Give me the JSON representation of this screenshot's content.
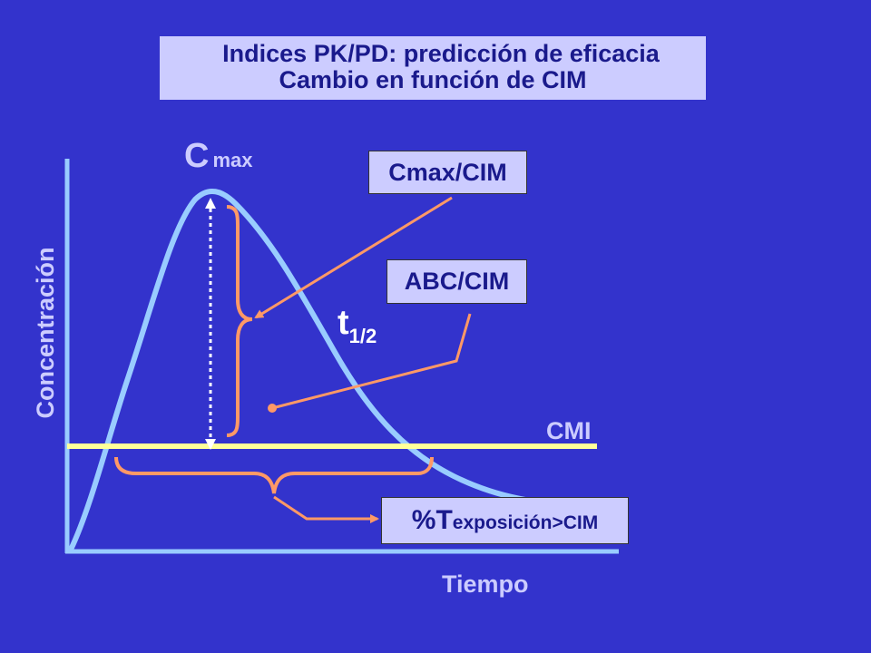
{
  "title": {
    "line1": "Indices PK/PD: predicción de eficacia",
    "line2": "Cambio en función de CIM"
  },
  "labels": {
    "cmax_main": "C",
    "cmax_sub": "max",
    "thalf_main": "t",
    "thalf_sub": "1/2",
    "cmi": "CMI",
    "x_axis": "Tiempo",
    "y_axis": "Concentración"
  },
  "boxes": {
    "cmax_cim": "Cmax/CIM",
    "abc_cim": "ABC/CIM",
    "texp_main": "%T",
    "texp_sub": "exposición>CIM"
  },
  "colors": {
    "background": "#3333cc",
    "curve": "#99ccff",
    "mic_line": "#ffff99",
    "bracket": "#ff9966",
    "box_fill": "#ccccff",
    "text_dark": "#1a1a8c",
    "text_light": "#ccccff"
  }
}
